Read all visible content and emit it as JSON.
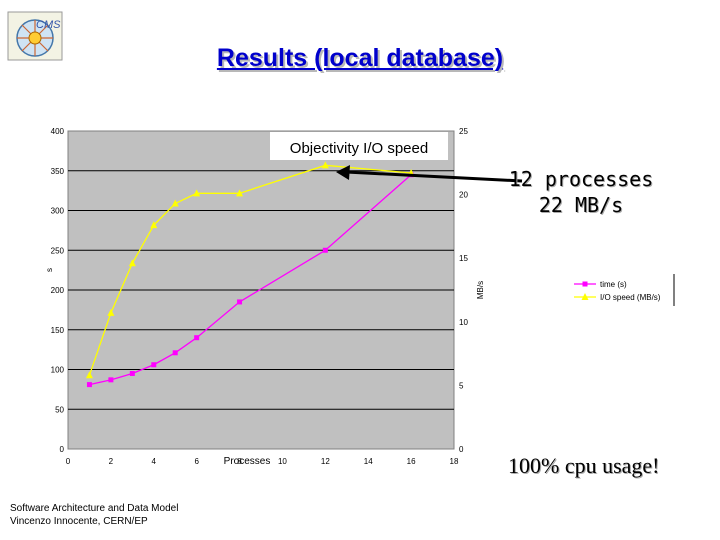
{
  "slide": {
    "title": "Results (local database)",
    "footer_line1": "Software Architecture and Data Model",
    "footer_line2": "Vincenzo Innocente, CERN/EP",
    "callout_line1": "12 processes",
    "callout_line2": "22 MB/s",
    "note": "100% cpu usage!",
    "logo_text": "CMS"
  },
  "colors": {
    "title": "#0000cc",
    "plot_bg": "#c0c0c0",
    "time_series": "#ff00ff",
    "io_series": "#ffff00"
  },
  "chart_data": {
    "type": "line",
    "title": "Objectivity I/O speed",
    "xlabel": "Processes",
    "ylabel": "s",
    "y2label": "MB/s",
    "xlim": [
      0,
      18
    ],
    "ylim": [
      0,
      400
    ],
    "y2lim": [
      0,
      25
    ],
    "x_ticks": [
      0,
      2,
      4,
      6,
      8,
      10,
      12,
      14,
      16,
      18
    ],
    "y_ticks": [
      0,
      50,
      100,
      150,
      200,
      250,
      300,
      350,
      400
    ],
    "y2_ticks": [
      0,
      5,
      10,
      15,
      20,
      25
    ],
    "grid": "horizontal",
    "legend_position": "right",
    "series": [
      {
        "name": "time (s)",
        "axis": "left",
        "color": "#ff00ff",
        "marker": "square",
        "x": [
          1,
          2,
          3,
          4,
          5,
          6,
          8,
          12,
          16
        ],
        "y": [
          81,
          87,
          95,
          106,
          121,
          140,
          185,
          250,
          345
        ]
      },
      {
        "name": "I/O speed (MB/s)",
        "axis": "right",
        "color": "#ffff00",
        "marker": "triangle",
        "x": [
          1,
          2,
          3,
          4,
          5,
          6,
          8,
          12,
          16
        ],
        "y": [
          5.8,
          10.7,
          14.6,
          17.6,
          19.3,
          20.1,
          20.1,
          22.3,
          21.7
        ]
      }
    ]
  }
}
